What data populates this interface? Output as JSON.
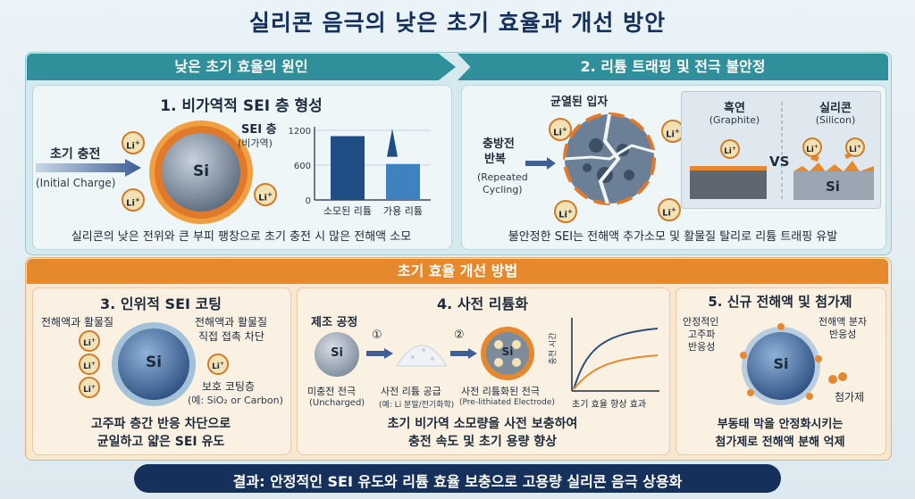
{
  "title": "실리콘 음극의 낮은 초기 효율과 개선 방안",
  "causes": {
    "header": "낮은 초기 효율의 원인",
    "sei": {
      "heading": "1. 비가역적 SEI 층 형성",
      "initial_charge_kr": "초기 충전",
      "initial_charge_en": "(Initial Charge)",
      "sei_layer": "SEI 층",
      "irreversible": "(비가역)",
      "si": "Si",
      "li": "Li",
      "li_sup": "+",
      "caption": "실리콘의 낮은 전위와 큰 부피 팽창으로 초기 충전 시 많은 전해액 소모"
    },
    "trapping": {
      "heading": "2. 리튬 트래핑 및 전극 불안정",
      "cracked": "균열된 입자",
      "cycling_kr1": "충방전",
      "cycling_kr2": "반복",
      "cycling_en1": "(Repeated",
      "cycling_en2": "Cycling)",
      "graphite_kr": "흑연",
      "graphite_en": "(Graphite)",
      "silicon_kr": "실리콘",
      "silicon_en": "(Silicon)",
      "vs": "VS",
      "si": "Si",
      "caption": "불안정한 SEI는 전해액 추가소모 및 활물질 탈리로 리튬 트래핑 유발"
    }
  },
  "chart_data": {
    "type": "bar",
    "categories": [
      "소모된 리튬",
      "가용 리튬"
    ],
    "values": [
      1100,
      620
    ],
    "yticks": [
      "1200",
      "600",
      "0"
    ],
    "ylim": [
      0,
      1200
    ]
  },
  "methods": {
    "header": "초기 효율 개선 방법",
    "coating": {
      "heading": "3. 인위적 SEI 코팅",
      "label_left": "전해액과 활물질",
      "label_right1": "전해액과 활물질",
      "label_right2": "직접 접촉 차단",
      "protect1": "보호 코팅층",
      "protect2": "(예: SiO₂ or Carbon)",
      "si": "Si",
      "caption1": "고주파 층간 반응 차단으로",
      "caption2": "균일하고 얇은 SEI 유도"
    },
    "prelith": {
      "heading": "4. 사전 리튬화",
      "process": "제조 공정",
      "step1": "①",
      "step2": "②",
      "si": "Si",
      "uncharged_kr": "미충전 전극",
      "uncharged_en": "(Uncharged)",
      "supply_kr": "사전 리튬 공급",
      "supply_en": "(예: Li 분말/전기화학)",
      "prelith_kr": "사전 리튬화된 전극",
      "prelith_en": "(Pre-lithiated Electrode)",
      "yaxis": "충전 시간",
      "xaxis": "초기 효율 향상 효과",
      "caption1": "초기 비가역 소모량을 사전 보충하여",
      "caption2": "충전 속도 및 초기 용량 향상"
    },
    "electrolyte": {
      "heading": "5. 신규 전해액 및 첨가제",
      "left1": "안정적인",
      "left2": "고주파",
      "left3": "반응성",
      "right1": "전해액 분자",
      "right2": "반응성",
      "additive": "첨가제",
      "si": "Si",
      "caption1": "부동태 막을 안정화시키는",
      "caption2": "첨가제로 전해액 분해 억제"
    }
  },
  "result": "결과: 안정적인 SEI 유도와 리튬 효율 보충으로 고용량 실리콘 음극 상용화",
  "colors": {
    "teal": "#2f8f9a",
    "orange": "#e6892e",
    "navy": "#15305a",
    "beige": "#fbf1e3",
    "panel": "#e6f2f4"
  }
}
